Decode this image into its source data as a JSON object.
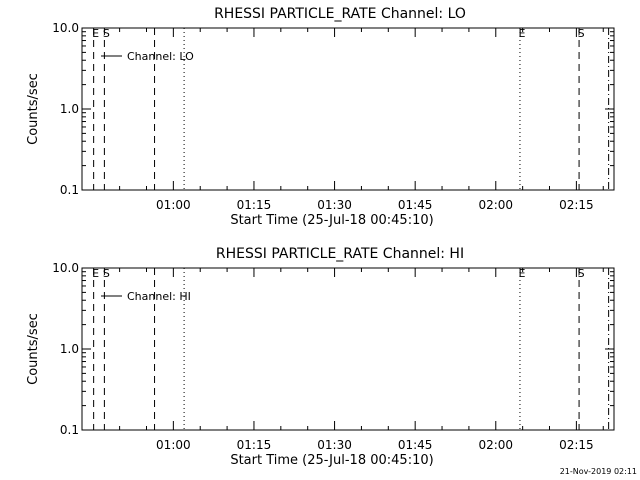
{
  "footer": {
    "timestamp": "21-Nov-2019 02:11"
  },
  "chart_data": [
    {
      "type": "line",
      "title": "RHESSI PARTICLE_RATE Channel: LO",
      "xlabel": "Start Time (25-Jul-18 00:45:10)",
      "ylabel": "Counts/sec",
      "yscale": "log",
      "ylim": [
        0.1,
        10.0
      ],
      "yticks": [
        {
          "value": 0.1,
          "label": "0.1"
        },
        {
          "value": 1.0,
          "label": "1.0"
        },
        {
          "value": 10.0,
          "label": "10.0"
        }
      ],
      "xlim": [
        "00:43",
        "02:22"
      ],
      "xticks": [
        "01:00",
        "01:15",
        "01:30",
        "01:45",
        "02:00",
        "02:15"
      ],
      "legend": {
        "placement": "top-left",
        "entries": [
          "Channel: LO"
        ]
      },
      "series": [],
      "markers": [
        {
          "time": "00:45:10",
          "style": "dashed",
          "label": "E"
        },
        {
          "time": "00:47:10",
          "style": "dashed",
          "label": "S"
        },
        {
          "time": "00:56:30",
          "style": "dashed",
          "label": ""
        },
        {
          "time": "01:02:00",
          "style": "dotted",
          "label": ""
        },
        {
          "time": "02:04:30",
          "style": "dotted",
          "label": "E"
        },
        {
          "time": "02:15:30",
          "style": "dashed",
          "label": "S"
        },
        {
          "time": "02:21:00",
          "style": "dashdot",
          "label": ""
        }
      ]
    },
    {
      "type": "line",
      "title": "RHESSI PARTICLE_RATE Channel: HI",
      "xlabel": "Start Time (25-Jul-18 00:45:10)",
      "ylabel": "Counts/sec",
      "yscale": "log",
      "ylim": [
        0.1,
        10.0
      ],
      "yticks": [
        {
          "value": 0.1,
          "label": "0.1"
        },
        {
          "value": 1.0,
          "label": "1.0"
        },
        {
          "value": 10.0,
          "label": "10.0"
        }
      ],
      "xlim": [
        "00:43",
        "02:22"
      ],
      "xticks": [
        "01:00",
        "01:15",
        "01:30",
        "01:45",
        "02:00",
        "02:15"
      ],
      "legend": {
        "placement": "top-left",
        "entries": [
          "Channel: HI"
        ]
      },
      "series": [],
      "markers": [
        {
          "time": "00:45:10",
          "style": "dashed",
          "label": "E"
        },
        {
          "time": "00:47:10",
          "style": "dashed",
          "label": "S"
        },
        {
          "time": "00:56:30",
          "style": "dashed",
          "label": ""
        },
        {
          "time": "01:02:00",
          "style": "dotted",
          "label": ""
        },
        {
          "time": "02:04:30",
          "style": "dotted",
          "label": "E"
        },
        {
          "time": "02:15:30",
          "style": "dashed",
          "label": "S"
        },
        {
          "time": "02:21:00",
          "style": "dashdot",
          "label": ""
        }
      ]
    }
  ]
}
